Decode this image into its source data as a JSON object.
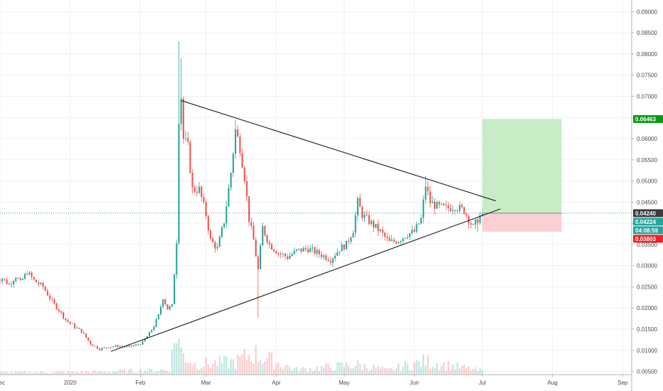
{
  "chart_data": {
    "type": "candlestick",
    "x_axis": {
      "ticks": [
        {
          "label": "Dec",
          "date": "2019-12-01"
        },
        {
          "label": "2020",
          "date": "2020-01-01"
        },
        {
          "label": "Feb",
          "date": "2020-02-01"
        },
        {
          "label": "Mar",
          "date": "2020-03-01"
        },
        {
          "label": "Apr",
          "date": "2020-04-01"
        },
        {
          "label": "May",
          "date": "2020-05-01"
        },
        {
          "label": "Jun",
          "date": "2020-06-01"
        },
        {
          "label": "Jul",
          "date": "2020-07-01"
        },
        {
          "label": "Aug",
          "date": "2020-08-01"
        },
        {
          "label": "Sep",
          "date": "2020-09-01"
        }
      ],
      "range": [
        "2019-12-01",
        "2020-09-05"
      ]
    },
    "y_axis": {
      "side": "right",
      "range": [
        0.00425,
        0.09275
      ],
      "ticks": [
        "0.00500",
        "0.01000",
        "0.01500",
        "0.02000",
        "0.02500",
        "0.03000",
        "0.03500",
        "0.04000",
        "0.04500",
        "0.05000",
        "0.05500",
        "0.06000",
        "0.06500",
        "0.07000",
        "0.07500",
        "0.08000",
        "0.08500",
        "0.09000"
      ]
    },
    "grid": true,
    "price_path": [
      [
        "2019-11-29",
        0.0265
      ],
      [
        "2019-12-02",
        0.027
      ],
      [
        "2019-12-05",
        0.0255
      ],
      [
        "2019-12-08",
        0.0275
      ],
      [
        "2019-12-10",
        0.026
      ],
      [
        "2019-12-13",
        0.0285
      ],
      [
        "2019-12-16",
        0.0265
      ],
      [
        "2019-12-20",
        0.025
      ],
      [
        "2019-12-24",
        0.0215
      ],
      [
        "2019-12-27",
        0.0195
      ],
      [
        "2019-12-30",
        0.0172
      ],
      [
        "2020-01-03",
        0.0155
      ],
      [
        "2020-01-06",
        0.0145
      ],
      [
        "2020-01-10",
        0.0115
      ],
      [
        "2020-01-14",
        0.0103
      ],
      [
        "2020-01-18",
        0.0108
      ],
      [
        "2020-01-22",
        0.011
      ],
      [
        "2020-01-26",
        0.0108
      ],
      [
        "2020-01-30",
        0.0112
      ],
      [
        "2020-02-02",
        0.0118
      ],
      [
        "2020-02-05",
        0.014
      ],
      [
        "2020-02-07",
        0.0158
      ],
      [
        "2020-02-09",
        0.0182
      ],
      [
        "2020-02-11",
        0.0225
      ],
      [
        "2020-02-13",
        0.0198
      ],
      [
        "2020-02-15",
        0.0205
      ],
      [
        "2020-02-17",
        0.036
      ],
      [
        "2020-02-18",
        0.065
      ],
      [
        "2020-02-19",
        0.07
      ],
      [
        "2020-02-20",
        0.06
      ],
      [
        "2020-02-22",
        0.058
      ],
      [
        "2020-02-24",
        0.048
      ],
      [
        "2020-02-27",
        0.048
      ],
      [
        "2020-03-01",
        0.042
      ],
      [
        "2020-03-03",
        0.036
      ],
      [
        "2020-03-06",
        0.034
      ],
      [
        "2020-03-09",
        0.0405
      ],
      [
        "2020-03-12",
        0.052
      ],
      [
        "2020-03-14",
        0.062
      ],
      [
        "2020-03-16",
        0.058
      ],
      [
        "2020-03-18",
        0.051
      ],
      [
        "2020-03-20",
        0.041
      ],
      [
        "2020-03-22",
        0.036
      ],
      [
        "2020-03-24",
        0.029
      ],
      [
        "2020-03-26",
        0.039
      ],
      [
        "2020-03-29",
        0.035
      ],
      [
        "2020-04-02",
        0.033
      ],
      [
        "2020-04-06",
        0.032
      ],
      [
        "2020-04-10",
        0.0335
      ],
      [
        "2020-04-15",
        0.034
      ],
      [
        "2020-04-20",
        0.0328
      ],
      [
        "2020-04-25",
        0.0315
      ],
      [
        "2020-04-29",
        0.034
      ],
      [
        "2020-05-02",
        0.035
      ],
      [
        "2020-05-05",
        0.0385
      ],
      [
        "2020-05-07",
        0.045
      ],
      [
        "2020-05-09",
        0.042
      ],
      [
        "2020-05-13",
        0.04
      ],
      [
        "2020-05-17",
        0.038
      ],
      [
        "2020-05-21",
        0.0355
      ],
      [
        "2020-05-25",
        0.036
      ],
      [
        "2020-05-29",
        0.0375
      ],
      [
        "2020-06-01",
        0.038
      ],
      [
        "2020-06-04",
        0.041
      ],
      [
        "2020-06-06",
        0.049
      ],
      [
        "2020-06-08",
        0.045
      ],
      [
        "2020-06-11",
        0.044
      ],
      [
        "2020-06-15",
        0.0435
      ],
      [
        "2020-06-19",
        0.044
      ],
      [
        "2020-06-23",
        0.043
      ],
      [
        "2020-06-25",
        0.041
      ],
      [
        "2020-06-27",
        0.039
      ],
      [
        "2020-06-29",
        0.041
      ],
      [
        "2020-07-01",
        0.0424
      ]
    ],
    "volume_path": [
      [
        "2019-12-01",
        0.3
      ],
      [
        "2020-01-15",
        0.4
      ],
      [
        "2020-02-14",
        0.7
      ],
      [
        "2020-02-17",
        6.5
      ],
      [
        "2020-02-19",
        3.2
      ],
      [
        "2020-02-25",
        1.5
      ],
      [
        "2020-03-14",
        1.8
      ],
      [
        "2020-03-22",
        3.0
      ],
      [
        "2020-04-10",
        0.7
      ],
      [
        "2020-05-07",
        1.4
      ],
      [
        "2020-05-20",
        0.6
      ],
      [
        "2020-06-06",
        1.9
      ],
      [
        "2020-06-29",
        0.6
      ]
    ],
    "trendlines": [
      {
        "name": "resistance",
        "from": [
          "2020-02-19",
          0.069
        ],
        "to": [
          "2020-07-07",
          0.0453
        ],
        "color": "#1e1e1e"
      },
      {
        "name": "support",
        "from": [
          "2020-01-19",
          0.00975
        ],
        "to": [
          "2020-07-09",
          0.0434
        ],
        "color": "#1e1e1e"
      }
    ],
    "position": {
      "start": "2020-07-01",
      "end": "2020-08-05",
      "entry": 0.0424,
      "target": 0.06463,
      "stop": 0.03803,
      "profit_color": "#c8ecc6",
      "loss_color": "#fbd0d2"
    },
    "price_line": {
      "value": 0.0424,
      "color": "#26a69a"
    },
    "price_labels": [
      {
        "text": "0.06463",
        "value": 0.06463,
        "bg": "#089912"
      },
      {
        "text": "0.04240",
        "value": 0.0424,
        "bg": "#3c3c3c"
      },
      {
        "text": "0.04224",
        "value": 0.04224,
        "bg": "#26a69a"
      },
      {
        "text": "04:08:59",
        "value": 0.0406,
        "bg": "#26a69a"
      },
      {
        "text": "0.03803",
        "value": 0.03803,
        "bg": "#e8242a"
      }
    ],
    "colors": {
      "up": "#26a69a",
      "down": "#ef5350",
      "grid": "#eef0f4",
      "axis": "#b2b5be"
    }
  }
}
